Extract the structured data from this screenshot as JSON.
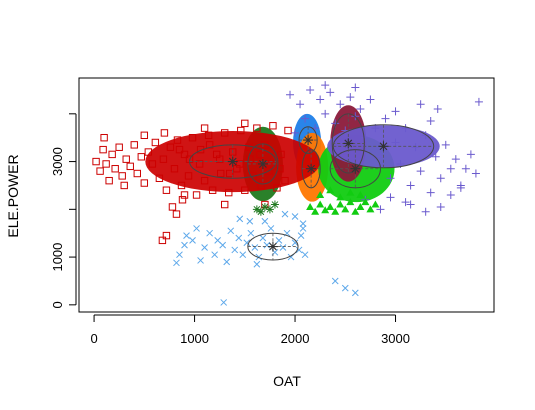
{
  "chart_data": {
    "type": "scatter",
    "title": "",
    "xlabel": "OAT",
    "ylabel": "ELE.POWER",
    "xlim": [
      -150,
      3980
    ],
    "ylim": [
      -150,
      4750
    ],
    "x_ticks": [
      {
        "value": 0,
        "label": "0"
      },
      {
        "value": 1000,
        "label": "1000"
      },
      {
        "value": 2000,
        "label": "2000"
      },
      {
        "value": 3000,
        "label": "3000"
      }
    ],
    "y_ticks": [
      {
        "value": 0,
        "label": "0"
      },
      {
        "value": 1000,
        "label": "1000"
      },
      {
        "value": 2000,
        "label": ""
      },
      {
        "value": 3000,
        "label": "3000"
      },
      {
        "value": 4000,
        "label": ""
      }
    ],
    "grid": false,
    "series": [
      {
        "name": "cluster-1-red-squares",
        "color": "#cc0000",
        "marker": "square",
        "points": [
          [
            20,
            3000
          ],
          [
            60,
            2800
          ],
          [
            90,
            3250
          ],
          [
            120,
            2950
          ],
          [
            150,
            2600
          ],
          [
            180,
            3150
          ],
          [
            210,
            2850
          ],
          [
            250,
            3300
          ],
          [
            280,
            2700
          ],
          [
            320,
            3050
          ],
          [
            360,
            2900
          ],
          [
            400,
            3350
          ],
          [
            430,
            2750
          ],
          [
            470,
            3100
          ],
          [
            500,
            2550
          ],
          [
            540,
            3200
          ],
          [
            580,
            2950
          ],
          [
            610,
            3400
          ],
          [
            650,
            2650
          ],
          [
            690,
            3050
          ],
          [
            720,
            2400
          ],
          [
            760,
            3300
          ],
          [
            800,
            2850
          ],
          [
            830,
            3450
          ],
          [
            870,
            2500
          ],
          [
            900,
            3150
          ],
          [
            940,
            2700
          ],
          [
            980,
            3500
          ],
          [
            1020,
            2300
          ],
          [
            1060,
            3250
          ],
          [
            1100,
            2600
          ],
          [
            1140,
            3550
          ],
          [
            1180,
            2400
          ],
          [
            1220,
            3150
          ],
          [
            1260,
            2750
          ],
          [
            1300,
            3600
          ],
          [
            1340,
            2350
          ],
          [
            1380,
            3200
          ],
          [
            1420,
            2850
          ],
          [
            1460,
            3650
          ],
          [
            1500,
            2400
          ],
          [
            1540,
            3300
          ],
          [
            1580,
            2700
          ],
          [
            1620,
            3700
          ],
          [
            1660,
            2500
          ],
          [
            1700,
            3350
          ],
          [
            1740,
            2800
          ],
          [
            1780,
            3750
          ],
          [
            1820,
            2450
          ],
          [
            1860,
            3150
          ],
          [
            1900,
            2600
          ],
          [
            1930,
            3650
          ],
          [
            100,
            3500
          ],
          [
            300,
            2500
          ],
          [
            500,
            3550
          ],
          [
            700,
            3600
          ],
          [
            900,
            2300
          ],
          [
            1100,
            3700
          ],
          [
            1300,
            2100
          ],
          [
            1500,
            3800
          ],
          [
            1700,
            2100
          ],
          [
            850,
            3250
          ],
          [
            1050,
            2950
          ],
          [
            1250,
            3050
          ],
          [
            1450,
            2950
          ],
          [
            1650,
            3150
          ],
          [
            1850,
            2850
          ],
          [
            950,
            3050
          ],
          [
            1150,
            3350
          ],
          [
            1350,
            2750
          ],
          [
            1550,
            3050
          ],
          [
            1750,
            2950
          ],
          [
            680,
            1350
          ],
          [
            720,
            1450
          ],
          [
            780,
            2050
          ],
          [
            820,
            1900
          ],
          [
            880,
            2200
          ]
        ]
      },
      {
        "name": "cluster-2-blue-crosses",
        "color": "#5da8ea",
        "marker": "x",
        "points": [
          [
            820,
            880
          ],
          [
            850,
            1050
          ],
          [
            900,
            1250
          ],
          [
            920,
            1450
          ],
          [
            980,
            1350
          ],
          [
            1020,
            1600
          ],
          [
            1060,
            930
          ],
          [
            1100,
            1200
          ],
          [
            1150,
            1500
          ],
          [
            1200,
            1050
          ],
          [
            1230,
            1350
          ],
          [
            1280,
            1250
          ],
          [
            1320,
            900
          ],
          [
            1360,
            1550
          ],
          [
            1400,
            1150
          ],
          [
            1440,
            1400
          ],
          [
            1480,
            1050
          ],
          [
            1520,
            1300
          ],
          [
            1560,
            1500
          ],
          [
            1600,
            1200
          ],
          [
            1640,
            1000
          ],
          [
            1680,
            1400
          ],
          [
            1720,
            1250
          ],
          [
            1760,
            1600
          ],
          [
            1800,
            1100
          ],
          [
            1840,
            1350
          ],
          [
            1880,
            1200
          ],
          [
            1920,
            1500
          ],
          [
            1960,
            1000
          ],
          [
            2000,
            1300
          ],
          [
            2040,
            1150
          ],
          [
            2060,
            1450
          ],
          [
            2080,
            1700
          ],
          [
            2100,
            1050
          ],
          [
            1290,
            50
          ],
          [
            1550,
            1750
          ],
          [
            1450,
            1800
          ],
          [
            2400,
            500
          ],
          [
            2500,
            350
          ],
          [
            2600,
            250
          ],
          [
            2000,
            1850
          ],
          [
            1900,
            1900
          ],
          [
            1700,
            1750
          ],
          [
            1620,
            850
          ],
          [
            2080,
            1600
          ]
        ]
      },
      {
        "name": "cluster-3-purple-plus",
        "color": "#6a5acd",
        "marker": "plus",
        "points": [
          [
            1950,
            4400
          ],
          [
            2000,
            3600
          ],
          [
            2050,
            4200
          ],
          [
            2100,
            3900
          ],
          [
            2150,
            4500
          ],
          [
            2200,
            3700
          ],
          [
            2250,
            4300
          ],
          [
            2300,
            4000
          ],
          [
            2350,
            4450
          ],
          [
            2400,
            3800
          ],
          [
            2450,
            4200
          ],
          [
            2500,
            3650
          ],
          [
            2550,
            4350
          ],
          [
            2600,
            3950
          ],
          [
            2650,
            4100
          ],
          [
            2700,
            3500
          ],
          [
            2750,
            4300
          ],
          [
            2800,
            3700
          ],
          [
            2850,
            3100
          ],
          [
            2900,
            3900
          ],
          [
            2950,
            2650
          ],
          [
            3000,
            3400
          ],
          [
            3050,
            2950
          ],
          [
            3100,
            3700
          ],
          [
            3150,
            2500
          ],
          [
            3200,
            3300
          ],
          [
            3250,
            2800
          ],
          [
            3300,
            3550
          ],
          [
            3350,
            2350
          ],
          [
            3400,
            3100
          ],
          [
            3450,
            2650
          ],
          [
            3500,
            3350
          ],
          [
            3550,
            2850
          ],
          [
            3600,
            3050
          ],
          [
            3650,
            2450
          ],
          [
            3700,
            2850
          ],
          [
            3750,
            3150
          ],
          [
            3800,
            2750
          ],
          [
            3830,
            4250
          ],
          [
            3420,
            4100
          ],
          [
            3250,
            4200
          ],
          [
            3350,
            3850
          ],
          [
            2700,
            2200
          ],
          [
            2850,
            2000
          ],
          [
            3100,
            2150
          ],
          [
            3300,
            1950
          ],
          [
            3450,
            2050
          ],
          [
            3550,
            2300
          ],
          [
            3650,
            2500
          ],
          [
            2600,
            4550
          ],
          [
            2300,
            4600
          ],
          [
            3000,
            4050
          ],
          [
            3150,
            2100
          ],
          [
            2950,
            2250
          ]
        ]
      },
      {
        "name": "cluster-4-green-triangles",
        "color": "#11cc11",
        "marker": "triangle",
        "points": [
          [
            2150,
            2050
          ],
          [
            2200,
            1950
          ],
          [
            2250,
            2100
          ],
          [
            2300,
            1980
          ],
          [
            2350,
            2050
          ],
          [
            2400,
            1950
          ],
          [
            2450,
            2100
          ],
          [
            2500,
            2000
          ],
          [
            2550,
            2150
          ],
          [
            2600,
            1950
          ],
          [
            2650,
            2050
          ],
          [
            2700,
            2150
          ],
          [
            2750,
            2000
          ],
          [
            2800,
            2100
          ],
          [
            2250,
            2300
          ],
          [
            2350,
            2400
          ],
          [
            2450,
            2250
          ],
          [
            2550,
            2350
          ],
          [
            2650,
            2300
          ]
        ]
      },
      {
        "name": "cluster-5-darkgreen-stars",
        "color": "#1f7a1f",
        "marker": "star",
        "points": [
          [
            1620,
            2000
          ],
          [
            1660,
            1950
          ],
          [
            1700,
            2050
          ],
          [
            1750,
            2000
          ],
          [
            1800,
            2100
          ]
        ]
      }
    ],
    "clusters": [
      {
        "name": "red",
        "center": [
          1380,
          3000
        ],
        "rx": 500,
        "ry": 380,
        "rotation": 0,
        "color": "#cc0000",
        "density_fill": false,
        "fill": null
      },
      {
        "name": "blue-crosses",
        "center": [
          1780,
          1220
        ],
        "rx": 280,
        "ry": 290,
        "rotation": 0,
        "color": "#5da8ea",
        "density_fill": false,
        "fill": null
      },
      {
        "name": "dark-green",
        "center": [
          1680,
          2950
        ],
        "rx": 200,
        "ry": 780,
        "rotation": 0,
        "color": "#1f7a1f",
        "density_fill": true,
        "fill": "#1f7a1f"
      },
      {
        "name": "dodger-blue",
        "center": [
          2120,
          3400
        ],
        "rx": 140,
        "ry": 600,
        "rotation": 0,
        "color": "#1e7ee8",
        "density_fill": true,
        "fill": "#1e7ee8"
      },
      {
        "name": "orange",
        "center": [
          2170,
          2880
        ],
        "rx": 160,
        "ry": 720,
        "rotation": 0,
        "color": "#ff7700",
        "density_fill": true,
        "fill": "#ff7700"
      },
      {
        "name": "green",
        "center": [
          2610,
          2850
        ],
        "rx": 380,
        "ry": 700,
        "rotation": 0,
        "color": "#11cc11",
        "density_fill": true,
        "fill": "#11cc11"
      },
      {
        "name": "maroon",
        "center": [
          2530,
          3380
        ],
        "rx": 180,
        "ry": 800,
        "rotation": 0,
        "color": "#8b1a3a",
        "density_fill": true,
        "fill": "#8b1a3a"
      },
      {
        "name": "purple",
        "center": [
          2880,
          3320
        ],
        "rx": 560,
        "ry": 440,
        "rotation": 0,
        "color": "#6a5acd",
        "density_fill": true,
        "fill": "#6a5acd"
      }
    ],
    "inner_ellipses": [
      {
        "center": [
          1380,
          3000
        ],
        "rx": 430,
        "ry": 350
      },
      {
        "center": [
          1680,
          2950
        ],
        "rx": 150,
        "ry": 420
      },
      {
        "center": [
          1780,
          1220
        ],
        "rx": 250,
        "ry": 280
      },
      {
        "center": [
          2130,
          3450
        ],
        "rx": 90,
        "ry": 280
      },
      {
        "center": [
          2160,
          2850
        ],
        "rx": 90,
        "ry": 400
      },
      {
        "center": [
          2530,
          3380
        ],
        "rx": 160,
        "ry": 620
      },
      {
        "center": [
          2600,
          2850
        ],
        "rx": 250,
        "ry": 400
      },
      {
        "center": [
          2880,
          3320
        ],
        "rx": 500,
        "ry": 450
      }
    ],
    "centers": [
      [
        1380,
        3000
      ],
      [
        1680,
        2950
      ],
      [
        1780,
        1220
      ],
      [
        2130,
        3450
      ],
      [
        2160,
        2850
      ],
      [
        2530,
        3380
      ],
      [
        2600,
        2850
      ],
      [
        2880,
        3320
      ]
    ]
  }
}
